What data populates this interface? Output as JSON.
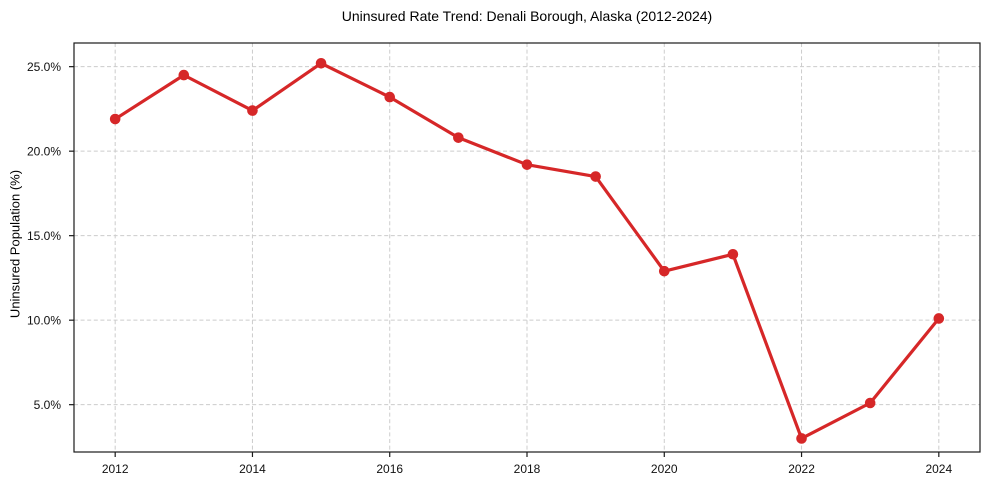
{
  "chart_data": {
    "type": "line",
    "title": "Uninsured Rate Trend: Denali Borough, Alaska (2012-2024)",
    "xlabel": "",
    "ylabel": "Uninsured Population (%)",
    "x": [
      2012,
      2013,
      2014,
      2015,
      2016,
      2017,
      2018,
      2019,
      2020,
      2021,
      2022,
      2023,
      2024
    ],
    "values": [
      21.9,
      24.5,
      22.4,
      25.2,
      23.2,
      20.8,
      19.2,
      18.5,
      12.9,
      13.9,
      3.0,
      5.1,
      10.1
    ],
    "xticks": {
      "values": [
        2012,
        2014,
        2016,
        2018,
        2020,
        2022,
        2024
      ],
      "labels": [
        "2012",
        "2014",
        "2016",
        "2018",
        "2020",
        "2022",
        "2024"
      ]
    },
    "yticks": {
      "values": [
        5,
        10,
        15,
        20,
        25
      ],
      "labels": [
        "5.0%",
        "10.0%",
        "15.0%",
        "20.0%",
        "25.0%"
      ]
    },
    "xlim": [
      2011.4,
      2024.6
    ],
    "ylim": [
      2.2,
      26.4
    ],
    "grid": true,
    "grid_style": "dashed",
    "legend": "none",
    "marker": "circle",
    "colors": {
      "line": "#d62728",
      "marker": "#d62728",
      "grid": "#cccccc",
      "axis": "#1a1a1a",
      "text": "#111111"
    }
  }
}
